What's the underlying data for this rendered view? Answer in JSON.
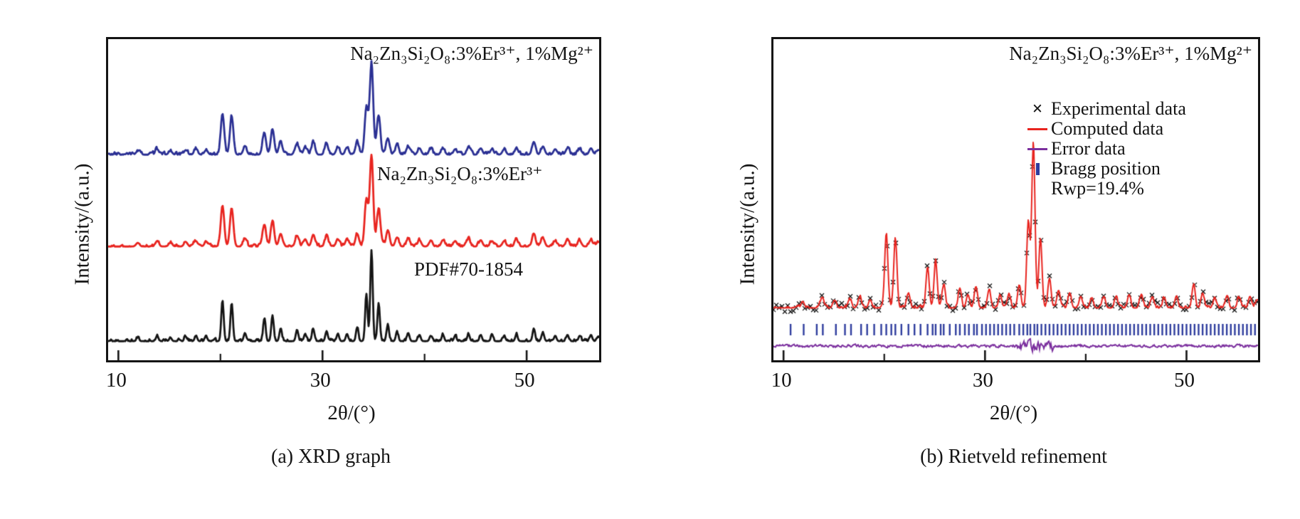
{
  "chart_data": [
    {
      "id": "xrd-comparison",
      "type": "line",
      "caption": "(a) XRD graph",
      "xlabel": "2θ/(°)",
      "ylabel": "Intensity/(a.u.)",
      "xlim": [
        9.0,
        57.1
      ],
      "xticks": [
        10,
        30,
        50
      ],
      "xticks_minor": [
        20,
        40
      ],
      "grid": false,
      "axis_frame_color": "#141414",
      "series": [
        {
          "name": "Na₂Zn₃Si₂O₈:3%Er³⁺, 1%Mg²⁺",
          "color": "#2a2f93"
        },
        {
          "name": "Na₂Zn₃Si₂O₈:3%Er³⁺",
          "color": "#e8241f"
        },
        {
          "name": "PDF#70-1854",
          "color": "#141414"
        }
      ],
      "peaks_two_theta_intensity": [
        [
          11.9,
          4
        ],
        [
          13.8,
          6
        ],
        [
          15.1,
          4
        ],
        [
          16.6,
          5
        ],
        [
          17.6,
          6
        ],
        [
          18.6,
          5
        ],
        [
          20.2,
          45
        ],
        [
          21.1,
          42
        ],
        [
          22.4,
          9
        ],
        [
          24.3,
          24
        ],
        [
          25.1,
          28
        ],
        [
          25.9,
          14
        ],
        [
          27.5,
          12
        ],
        [
          28.3,
          8
        ],
        [
          29.1,
          13
        ],
        [
          30.4,
          11
        ],
        [
          31.5,
          8
        ],
        [
          32.4,
          8
        ],
        [
          33.4,
          14
        ],
        [
          34.3,
          52
        ],
        [
          34.8,
          100
        ],
        [
          35.5,
          42
        ],
        [
          36.4,
          18
        ],
        [
          37.3,
          10
        ],
        [
          38.4,
          9
        ],
        [
          39.5,
          7
        ],
        [
          40.6,
          6
        ],
        [
          41.8,
          7
        ],
        [
          43.0,
          6
        ],
        [
          44.3,
          8
        ],
        [
          45.5,
          7
        ],
        [
          46.6,
          6
        ],
        [
          47.8,
          6
        ],
        [
          49.0,
          7
        ],
        [
          50.7,
          14
        ],
        [
          51.6,
          9
        ],
        [
          52.8,
          6
        ],
        [
          54.0,
          7
        ],
        [
          55.2,
          6
        ],
        [
          56.3,
          7
        ],
        [
          57.0,
          5
        ]
      ]
    },
    {
      "id": "rietveld-refinement",
      "type": "line",
      "caption": "(b) Rietveld refinement",
      "title": "Na₂Zn₃Si₂O₈:3%Er³⁺, 1%Mg²⁺",
      "xlabel": "2θ/(°)",
      "ylabel": "Intensity/(a.u.)",
      "xlim": [
        9.0,
        57.1
      ],
      "xticks": [
        10,
        30,
        50
      ],
      "xticks_minor": [
        20,
        40
      ],
      "grid": false,
      "rwp": "Rwp=19.4%",
      "legend": [
        {
          "marker": "x",
          "label": "Experimental data",
          "color": "#141414"
        },
        {
          "marker": "line",
          "label": "Computed data",
          "color": "#e8241f"
        },
        {
          "marker": "line",
          "label": "Error data",
          "color": "#7b2f9e"
        },
        {
          "marker": "bar",
          "label": "Bragg position",
          "color": "#2f3d9e"
        },
        {
          "marker": "none",
          "label": "Rwp=19.4%",
          "color": "#141414"
        }
      ],
      "peaks_two_theta_intensity": [
        [
          11.9,
          4
        ],
        [
          13.8,
          6
        ],
        [
          15.1,
          4
        ],
        [
          16.6,
          5
        ],
        [
          17.6,
          6
        ],
        [
          18.6,
          5
        ],
        [
          20.2,
          45
        ],
        [
          21.1,
          42
        ],
        [
          22.4,
          9
        ],
        [
          24.3,
          24
        ],
        [
          25.1,
          28
        ],
        [
          25.9,
          14
        ],
        [
          27.5,
          12
        ],
        [
          28.3,
          8
        ],
        [
          29.1,
          13
        ],
        [
          30.4,
          11
        ],
        [
          31.5,
          8
        ],
        [
          32.4,
          8
        ],
        [
          33.4,
          14
        ],
        [
          34.3,
          52
        ],
        [
          34.8,
          100
        ],
        [
          35.5,
          42
        ],
        [
          36.4,
          18
        ],
        [
          37.3,
          10
        ],
        [
          38.4,
          9
        ],
        [
          39.5,
          7
        ],
        [
          40.6,
          6
        ],
        [
          41.8,
          7
        ],
        [
          43.0,
          6
        ],
        [
          44.3,
          8
        ],
        [
          45.5,
          7
        ],
        [
          46.6,
          6
        ],
        [
          47.8,
          6
        ],
        [
          49.0,
          7
        ],
        [
          50.7,
          14
        ],
        [
          51.6,
          9
        ],
        [
          52.8,
          6
        ],
        [
          54.0,
          7
        ],
        [
          55.2,
          6
        ],
        [
          56.3,
          7
        ],
        [
          57.0,
          5
        ]
      ],
      "bragg_positions": [
        10.7,
        12.0,
        13.3,
        13.9,
        15.2,
        16.1,
        16.7,
        17.7,
        18.3,
        19.0,
        19.7,
        20.2,
        20.7,
        21.1,
        21.7,
        22.4,
        23.0,
        23.6,
        24.3,
        24.8,
        25.1,
        25.6,
        25.9,
        26.5,
        27.1,
        27.5,
        28.0,
        28.4,
        28.9,
        29.2,
        29.7,
        30.1,
        30.5,
        30.9,
        31.3,
        31.7,
        32.1,
        32.5,
        32.9,
        33.4,
        33.8,
        34.2,
        34.5,
        34.9,
        35.2,
        35.6,
        36.0,
        36.4,
        36.8,
        37.2,
        37.6,
        38.0,
        38.4,
        38.8,
        39.2,
        39.6,
        40.0,
        40.4,
        40.8,
        41.2,
        41.6,
        42.0,
        42.4,
        42.8,
        43.2,
        43.6,
        44.0,
        44.4,
        44.8,
        45.2,
        45.6,
        46.0,
        46.4,
        46.8,
        47.2,
        47.6,
        48.0,
        48.4,
        48.8,
        49.2,
        49.6,
        50.0,
        50.4,
        50.8,
        51.2,
        51.6,
        52.0,
        52.4,
        52.8,
        53.2,
        53.6,
        54.0,
        54.4,
        54.8,
        55.2,
        55.6,
        56.0,
        56.4,
        56.8
      ]
    }
  ]
}
